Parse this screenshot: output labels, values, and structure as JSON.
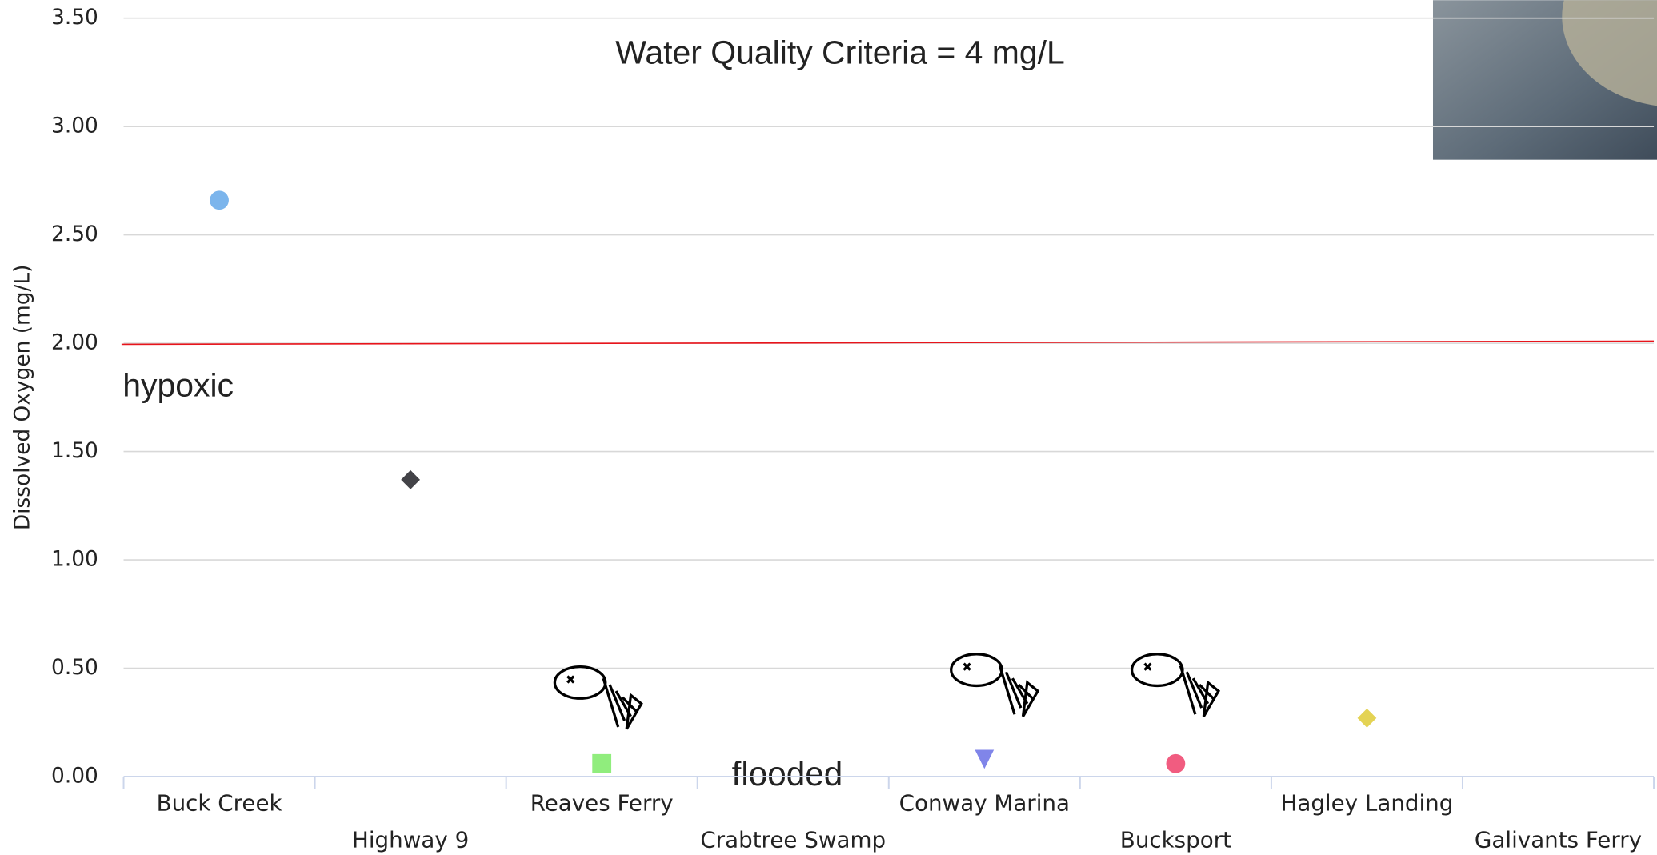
{
  "chart_data": {
    "type": "scatter",
    "title": "Water Quality Criteria = 4 mg/L",
    "y_label": "Dissolved Oxygen (mg/L)",
    "categories": [
      "Buck Creek",
      "Highway 9",
      "Reaves Ferry",
      "Crabtree Swamp",
      "Conway Marina",
      "Bucksport",
      "Hagley Landing",
      "Galivants Ferry"
    ],
    "values": [
      2.66,
      1.37,
      0.06,
      null,
      0.08,
      0.06,
      0.27,
      null
    ],
    "colors": [
      "#7cb5ec",
      "#434348",
      "#90ed7d",
      null,
      "#8085e9",
      "#f15c80",
      "#e4d354",
      null
    ],
    "markers": [
      "circle",
      "diamond",
      "square",
      null,
      "triangle-down",
      "circle",
      "diamond",
      null
    ],
    "ylim": [
      0,
      3.5
    ],
    "yticks": [
      {
        "value": 0,
        "label": "0.00"
      },
      {
        "value": 0.5,
        "label": "0.50"
      },
      {
        "value": 1,
        "label": "1.00"
      },
      {
        "value": 1.5,
        "label": "1.50"
      },
      {
        "value": 2,
        "label": "2.00"
      },
      {
        "value": 2.5,
        "label": "2.50"
      },
      {
        "value": 3,
        "label": "3.00"
      },
      {
        "value": 3.5,
        "label": "3.50"
      }
    ],
    "grid": true,
    "threshold": {
      "value": 2,
      "label": "hypoxic",
      "color": "#e8141b"
    },
    "note": "flooded"
  }
}
